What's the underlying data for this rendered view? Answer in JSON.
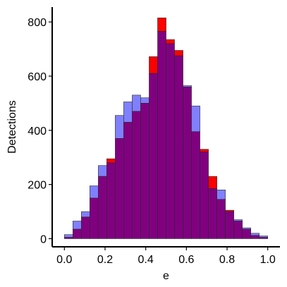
{
  "chart_data": {
    "type": "bar",
    "subtype": "overlaid-histogram",
    "xlabel": "e",
    "ylabel": "Detections",
    "xlim": [
      -0.06,
      1.06
    ],
    "ylim": [
      -30,
      855
    ],
    "x_ticks": [
      0.0,
      0.2,
      0.4,
      0.6,
      0.8,
      1.0
    ],
    "x_tick_labels": [
      "0.0",
      "0.2",
      "0.4",
      "0.6",
      "0.8",
      "1.0"
    ],
    "y_ticks": [
      0,
      200,
      400,
      600,
      800
    ],
    "y_tick_labels": [
      "0",
      "200",
      "400",
      "600",
      "800"
    ],
    "bin_width": 0.04167,
    "bin_centers": [
      0.0208,
      0.0625,
      0.1042,
      0.1458,
      0.1875,
      0.2292,
      0.2708,
      0.3125,
      0.3542,
      0.3958,
      0.4375,
      0.4792,
      0.5208,
      0.5625,
      0.6042,
      0.6458,
      0.6875,
      0.7292,
      0.7708,
      0.8125,
      0.8542,
      0.8958,
      0.9375,
      0.9792
    ],
    "grid": false,
    "legend": "none",
    "series": [
      {
        "color": "#ff0000",
        "values": [
          5,
          35,
          80,
          150,
          230,
          295,
          370,
          430,
          470,
          500,
          672,
          815,
          735,
          695,
          560,
          395,
          330,
          230,
          145,
          105,
          65,
          35,
          12,
          5
        ]
      },
      {
        "color": "#8080ff",
        "values": [
          15,
          65,
          100,
          195,
          270,
          280,
          455,
          505,
          530,
          520,
          610,
          765,
          720,
          675,
          565,
          490,
          320,
          185,
          180,
          100,
          70,
          40,
          20,
          10
        ]
      }
    ],
    "overlap_color": "#800080"
  }
}
